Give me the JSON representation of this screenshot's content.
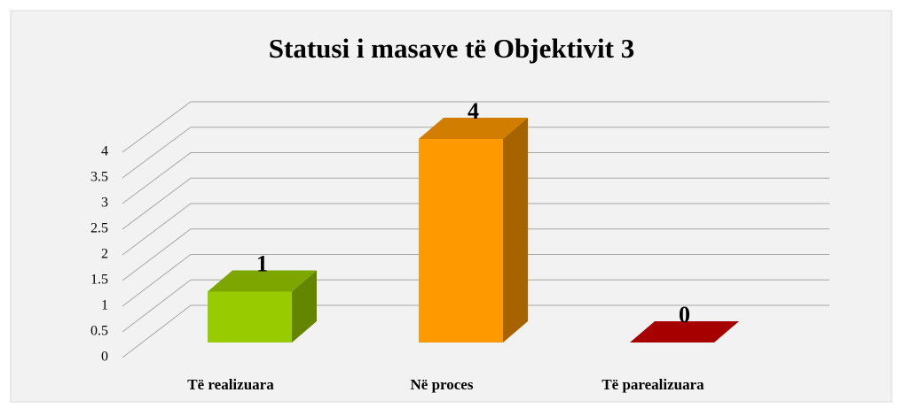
{
  "chart_data": {
    "type": "bar3d",
    "title": "Statusi i masave të Objektivit 3",
    "categories": [
      "Të realizuara",
      "Në proces",
      "Të parealizuara"
    ],
    "values": [
      1,
      4,
      0
    ],
    "colors": [
      "#99cc00",
      "#ff9900",
      "#cc0000"
    ],
    "ylim": [
      0,
      4
    ],
    "yticks": [
      0,
      0.5,
      1,
      1.5,
      2,
      2.5,
      3,
      3.5,
      4
    ],
    "grid": true
  }
}
